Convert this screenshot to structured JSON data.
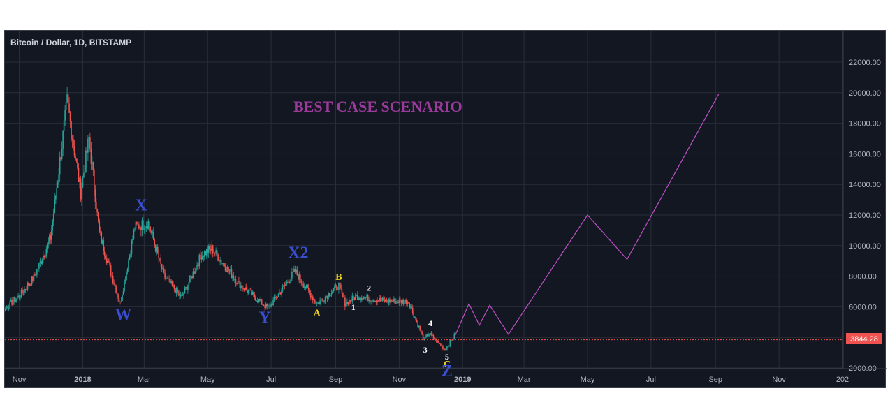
{
  "header": {
    "symbol_title": "Bitcoin / Dollar, 1D, BITSTAMP"
  },
  "annotation_title": "BEST CASE SCENARIO",
  "price_tag": "3844.28",
  "colors": {
    "background": "#131722",
    "grid": "#2a2e39",
    "up_candle": "#26a69a",
    "down_candle": "#ef5350",
    "projection": "#c050c8",
    "wave_blue": "#3a4ed0",
    "wave_yellow": "#f0d020",
    "wave_white": "#ffffff",
    "price_line": "#ef5350",
    "title_purple": "#9c3a9c"
  },
  "chart_data": {
    "type": "line",
    "instrument": "Bitcoin / Dollar, 1D, BITSTAMP",
    "y_axis": {
      "ticks": [
        "2000.00",
        "4000.00",
        "6000.00",
        "8000.00",
        "10000.00",
        "12000.00",
        "14000.00",
        "16000.00",
        "18000.00",
        "20000.00",
        "22000.00"
      ],
      "ylim": [
        1800,
        23800
      ]
    },
    "x_axis": {
      "ticks": [
        "Nov",
        "2018",
        "Mar",
        "May",
        "Jul",
        "Sep",
        "Nov",
        "2019",
        "Mar",
        "May",
        "Jul",
        "Sep",
        "Nov",
        "202"
      ]
    },
    "price_series_anchors": [
      {
        "date": "2017-10-01",
        "price": 4400
      },
      {
        "date": "2017-10-15",
        "price": 5700
      },
      {
        "date": "2017-11-01",
        "price": 6700
      },
      {
        "date": "2017-11-15",
        "price": 7900
      },
      {
        "date": "2017-12-01",
        "price": 10500
      },
      {
        "date": "2017-12-17",
        "price": 19400
      },
      {
        "date": "2017-12-30",
        "price": 13500
      },
      {
        "date": "2018-01-07",
        "price": 17000
      },
      {
        "date": "2018-01-17",
        "price": 10800
      },
      {
        "date": "2018-02-06",
        "price": 6200
      },
      {
        "date": "2018-02-20",
        "price": 11200
      },
      {
        "date": "2018-03-05",
        "price": 11500
      },
      {
        "date": "2018-03-20",
        "price": 8000
      },
      {
        "date": "2018-04-06",
        "price": 6600
      },
      {
        "date": "2018-04-25",
        "price": 9400
      },
      {
        "date": "2018-05-05",
        "price": 9800
      },
      {
        "date": "2018-05-31",
        "price": 7500
      },
      {
        "date": "2018-06-28",
        "price": 5900
      },
      {
        "date": "2018-07-24",
        "price": 8300
      },
      {
        "date": "2018-08-14",
        "price": 6200
      },
      {
        "date": "2018-09-04",
        "price": 7400
      },
      {
        "date": "2018-09-10",
        "price": 6200
      },
      {
        "date": "2018-09-21",
        "price": 6700
      },
      {
        "date": "2018-10-15",
        "price": 6400
      },
      {
        "date": "2018-11-10",
        "price": 6350
      },
      {
        "date": "2018-11-25",
        "price": 3800
      },
      {
        "date": "2018-11-29",
        "price": 4300
      },
      {
        "date": "2018-12-15",
        "price": 3200
      },
      {
        "date": "2018-12-24",
        "price": 4100
      }
    ],
    "projection_series": [
      {
        "date": "2018-12-24",
        "price": 4000
      },
      {
        "date": "2019-01-07",
        "price": 6200
      },
      {
        "date": "2019-01-17",
        "price": 4800
      },
      {
        "date": "2019-01-27",
        "price": 6100
      },
      {
        "date": "2019-02-14",
        "price": 4200
      },
      {
        "date": "2019-05-01",
        "price": 12000
      },
      {
        "date": "2019-06-08",
        "price": 9100
      },
      {
        "date": "2019-09-04",
        "price": 19900
      }
    ],
    "horizontal_line": {
      "price": 3844.28,
      "style": "dotted"
    },
    "wave_labels": [
      {
        "text": "X",
        "date": "2018-02-26",
        "price": 12300,
        "color_key": "wave_blue",
        "style": "large"
      },
      {
        "text": "W",
        "date": "2018-02-09",
        "price": 5150,
        "color_key": "wave_blue",
        "style": "large"
      },
      {
        "text": "Y",
        "date": "2018-06-25",
        "price": 4950,
        "color_key": "wave_blue",
        "style": "large"
      },
      {
        "text": "X2",
        "date": "2018-07-27",
        "price": 9200,
        "color_key": "wave_blue",
        "style": "large"
      },
      {
        "text": "A",
        "date": "2018-08-14",
        "price": 5400,
        "color_key": "wave_yellow",
        "style": "small"
      },
      {
        "text": "B",
        "date": "2018-09-04",
        "price": 7750,
        "color_key": "wave_yellow",
        "style": "small"
      },
      {
        "text": "1",
        "date": "2018-09-18",
        "price": 5800,
        "color_key": "wave_white",
        "style": "tiny"
      },
      {
        "text": "2",
        "date": "2018-10-03",
        "price": 7050,
        "color_key": "wave_white",
        "style": "tiny"
      },
      {
        "text": "3",
        "date": "2018-11-26",
        "price": 3000,
        "color_key": "wave_white",
        "style": "tiny"
      },
      {
        "text": "4",
        "date": "2018-12-01",
        "price": 4750,
        "color_key": "wave_white",
        "style": "tiny"
      },
      {
        "text": "5",
        "date": "2018-12-17",
        "price": 2550,
        "color_key": "wave_white",
        "style": "tiny"
      },
      {
        "text": "C",
        "date": "2018-12-17",
        "price": 2050,
        "color_key": "wave_yellow",
        "style": "small"
      },
      {
        "text": "Z",
        "date": "2018-12-17",
        "price": 1450,
        "color_key": "wave_blue",
        "style": "large"
      }
    ]
  }
}
